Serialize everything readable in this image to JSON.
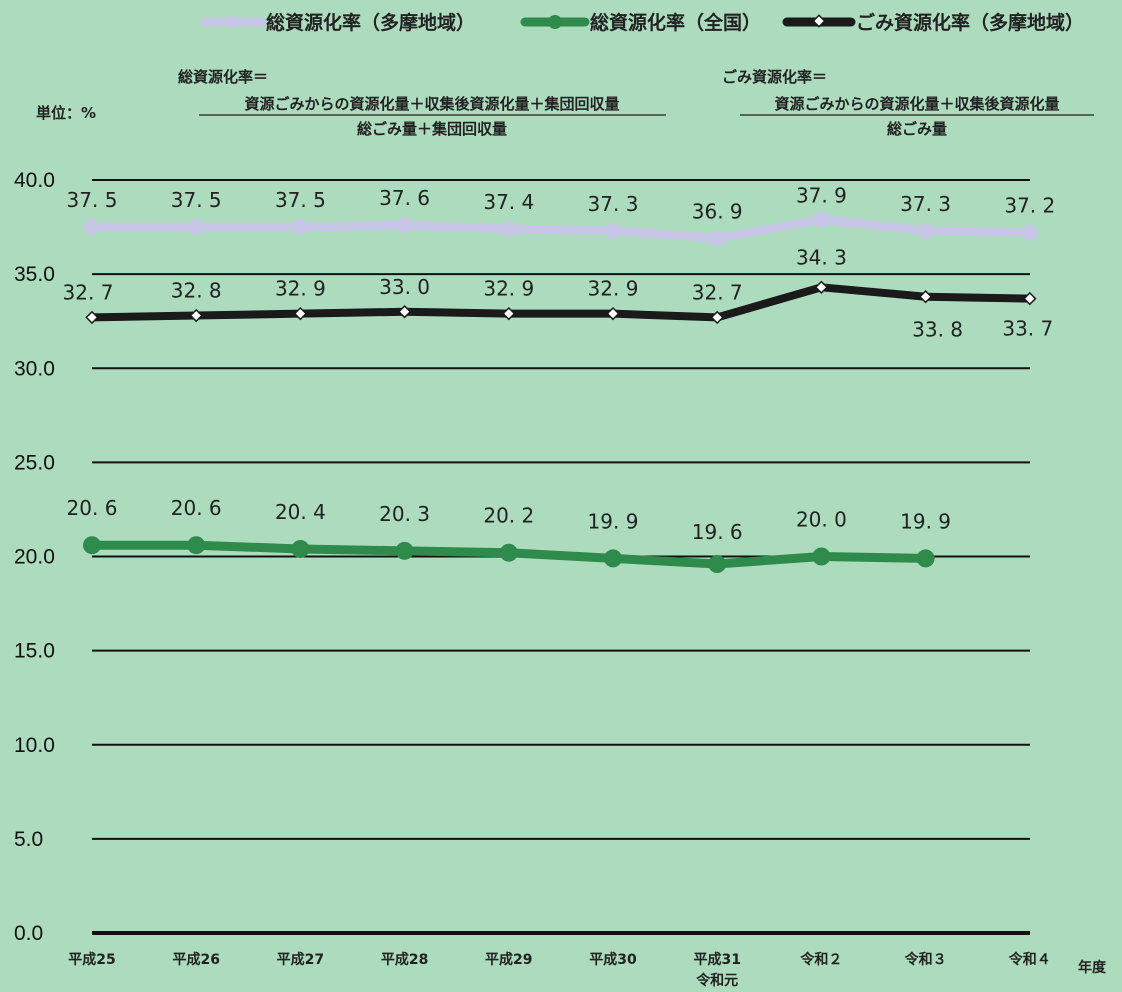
{
  "unit_label": "単位：%",
  "xaxis_unit": "年度",
  "formulas": [
    {
      "title": "総資源化率＝",
      "numerator": "資源ごみからの資源化量＋収集後資源化量＋集団回収量",
      "denominator": "総ごみ量＋集団回収量"
    },
    {
      "title": "ごみ資源化率＝",
      "numerator": "資源ごみからの資源化量＋収集後資源化量",
      "denominator": "総ごみ量"
    }
  ],
  "colors": {
    "background": "#acdbbd",
    "tama_total": "#c8c6e6",
    "national": "#2e8b4c",
    "tama_waste": "#1a1a1a",
    "grid": "#111111"
  },
  "chart_data": {
    "type": "line",
    "categories": [
      "平成25",
      "平成26",
      "平成27",
      "平成28",
      "平成29",
      "平成30",
      "平成31",
      "令和２",
      "令和３",
      "令和４"
    ],
    "category_sublabels": [
      "",
      "",
      "",
      "",
      "",
      "",
      "令和元",
      "",
      "",
      ""
    ],
    "ylim": [
      0,
      40
    ],
    "yticks": [
      "0.0",
      "5.0",
      "10.0",
      "15.0",
      "20.0",
      "25.0",
      "30.0",
      "35.0",
      "40.0"
    ],
    "grid": true,
    "legend_position": "top",
    "series": [
      {
        "name": "総資源化率（多摩地域）",
        "values": [
          37.5,
          37.5,
          37.5,
          37.6,
          37.4,
          37.3,
          36.9,
          37.9,
          37.3,
          37.2
        ],
        "labels": [
          "37. 5",
          "37. 5",
          "37. 5",
          "37. 6",
          "37. 4",
          "37. 3",
          "36. 9",
          "37. 9",
          "37. 3",
          "37. 2"
        ],
        "marker": "circle"
      },
      {
        "name": "総資源化率（全国）",
        "values": [
          20.6,
          20.6,
          20.4,
          20.3,
          20.2,
          19.9,
          19.6,
          20.0,
          19.9,
          null
        ],
        "labels": [
          "20. 6",
          "20. 6",
          "20. 4",
          "20. 3",
          "20. 2",
          "19. 9",
          "19. 6",
          "20. 0",
          "19. 9",
          ""
        ],
        "marker": "circle"
      },
      {
        "name": "ごみ資源化率（多摩地域）",
        "values": [
          32.7,
          32.8,
          32.9,
          33.0,
          32.9,
          32.9,
          32.7,
          34.3,
          33.8,
          33.7
        ],
        "labels": [
          "32. 7",
          "32. 8",
          "32. 9",
          "33. 0",
          "32. 9",
          "32. 9",
          "32. 7",
          "34. 3",
          "33. 8",
          "33. 7"
        ],
        "marker": "diamond"
      }
    ]
  }
}
